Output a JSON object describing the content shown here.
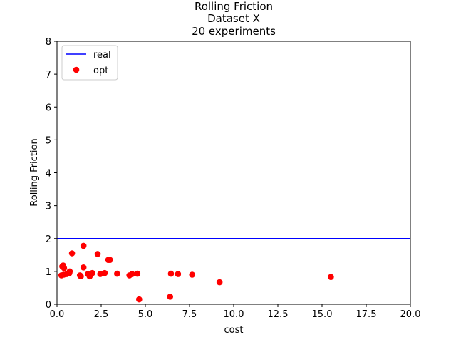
{
  "chart_data": {
    "type": "scatter",
    "title_lines": [
      "Rolling Friction",
      "Dataset X",
      "20 experiments"
    ],
    "xlabel": "cost",
    "ylabel": "Rolling Friction",
    "xlim": [
      0,
      20
    ],
    "ylim": [
      0,
      8
    ],
    "xticks": [
      0,
      2.5,
      5,
      7.5,
      10,
      12.5,
      15,
      17.5,
      20
    ],
    "xtick_labels": [
      "0.0",
      "2.5",
      "5.0",
      "7.5",
      "10.0",
      "12.5",
      "15.0",
      "17.5",
      "20.0"
    ],
    "yticks": [
      0,
      1,
      2,
      3,
      4,
      5,
      6,
      7,
      8
    ],
    "ytick_labels": [
      "0",
      "1",
      "2",
      "3",
      "4",
      "5",
      "6",
      "7",
      "8"
    ],
    "grid": false,
    "legend": {
      "placement": "top-left",
      "entries": [
        "real",
        "opt"
      ]
    },
    "series": [
      {
        "name": "real",
        "kind": "hline",
        "y": 2.0,
        "color": "#0000ff"
      },
      {
        "name": "opt",
        "kind": "scatter",
        "color": "#ff0000",
        "points": [
          [
            0.25,
            0.88
          ],
          [
            0.3,
            1.15
          ],
          [
            0.35,
            1.18
          ],
          [
            0.38,
            0.9
          ],
          [
            0.4,
            1.1
          ],
          [
            0.55,
            0.92
          ],
          [
            0.7,
            0.95
          ],
          [
            0.72,
            1.0
          ],
          [
            0.85,
            1.55
          ],
          [
            1.3,
            0.88
          ],
          [
            1.35,
            0.85
          ],
          [
            1.5,
            1.12
          ],
          [
            1.5,
            1.78
          ],
          [
            1.75,
            0.92
          ],
          [
            1.85,
            0.85
          ],
          [
            2.0,
            0.95
          ],
          [
            2.3,
            1.53
          ],
          [
            2.45,
            0.92
          ],
          [
            2.7,
            0.95
          ],
          [
            2.9,
            1.35
          ],
          [
            3.0,
            1.35
          ],
          [
            3.4,
            0.93
          ],
          [
            4.1,
            0.88
          ],
          [
            4.25,
            0.92
          ],
          [
            4.55,
            0.93
          ],
          [
            4.65,
            0.15
          ],
          [
            6.4,
            0.23
          ],
          [
            6.45,
            0.93
          ],
          [
            6.85,
            0.92
          ],
          [
            7.65,
            0.9
          ],
          [
            9.2,
            0.67
          ],
          [
            15.5,
            0.83
          ]
        ]
      }
    ]
  }
}
